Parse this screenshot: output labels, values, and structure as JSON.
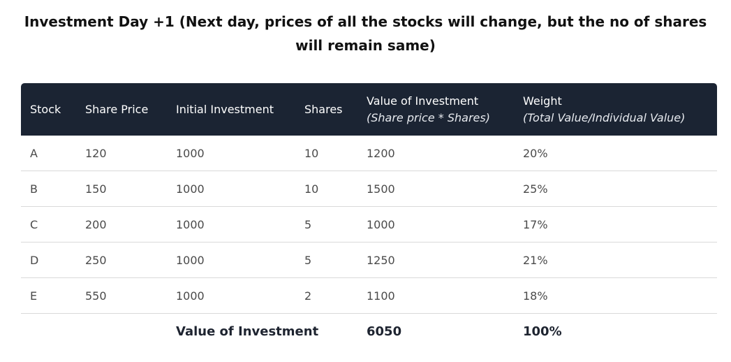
{
  "title": "Investment Day +1 (Next day, prices of all the stocks will change, but the no of shares will remain same)",
  "table": {
    "headers": [
      {
        "label": "Stock",
        "sub": ""
      },
      {
        "label": "Share Price",
        "sub": ""
      },
      {
        "label": "Initial Investment",
        "sub": ""
      },
      {
        "label": "Shares",
        "sub": ""
      },
      {
        "label": "Value of Investment",
        "sub": "(Share price * Shares)"
      },
      {
        "label": "Weight",
        "sub": "(Total Value/Individual Value)"
      }
    ],
    "rows": [
      [
        "A",
        "120",
        "1000",
        "10",
        "1200",
        "20%"
      ],
      [
        "B",
        "150",
        "1000",
        "10",
        "1500",
        "25%"
      ],
      [
        "C",
        "200",
        "1000",
        "5",
        "1000",
        "17%"
      ],
      [
        "D",
        "250",
        "1000",
        "5",
        "1250",
        "21%"
      ],
      [
        "E",
        "550",
        "1000",
        "2",
        "1100",
        "18%"
      ]
    ],
    "total": {
      "label": "Value of Investment",
      "value": "6050",
      "weight": "100%"
    }
  },
  "colors": {
    "header_bg": "#1b2433",
    "header_text": "#ffffff",
    "row_divider": "#d9d9d9"
  }
}
